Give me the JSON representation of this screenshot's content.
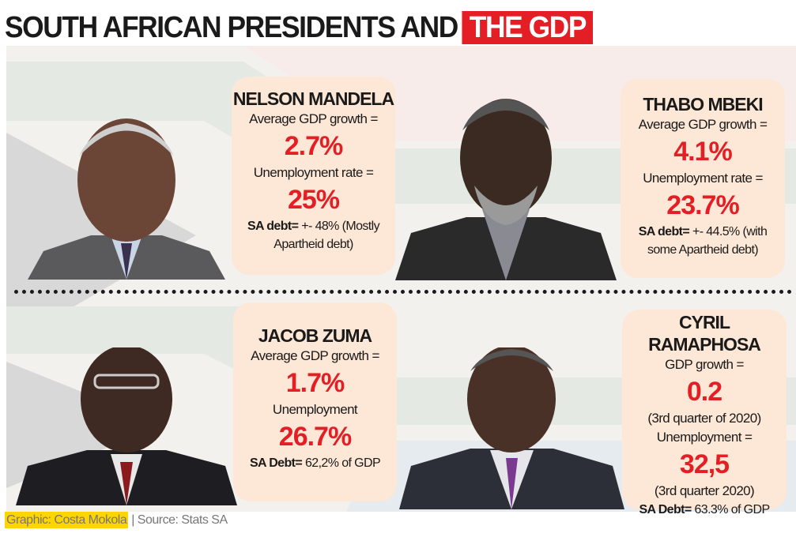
{
  "title": {
    "main": "SOUTH AFRICAN PRESIDENTS AND",
    "highlight": "THE GDP"
  },
  "colors": {
    "accent": "#e31e24",
    "card": "#fde7d6",
    "credit": "#ffd500"
  },
  "presidents": [
    {
      "name": "NELSON MANDELA",
      "gdp_label": "Average GDP growth =",
      "gdp": "2.7%",
      "unemp_label": "Unemployment rate =",
      "unemp": "25%",
      "debt_label": "SA debt=",
      "debt_text": "+- 48% (Mostly Apartheid debt)"
    },
    {
      "name": "THABO MBEKI",
      "gdp_label": "Average GDP growth =",
      "gdp": "4.1%",
      "unemp_label": "Unemployment rate =",
      "unemp": "23.7%",
      "debt_label": "SA debt=",
      "debt_text": "+- 44.5% (with some Apartheid debt)"
    },
    {
      "name": "JACOB ZUMA",
      "gdp_label": "Average GDP growth =",
      "gdp": "1.7%",
      "unemp_label": "Unemployment",
      "unemp": "26.7%",
      "debt_label": "SA Debt=",
      "debt_text": "62,2% of GDP"
    },
    {
      "name": "CYRIL RAMAPHOSA",
      "gdp_label": "GDP growth =",
      "gdp": "0.2",
      "gdp_note": "(3rd quarter of 2020)",
      "unemp_label": "Unemployment =",
      "unemp": "32,5",
      "unemp_note": "(3rd quarter 2020)",
      "debt_label": "SA Debt=",
      "debt_text": "63.3% of GDP"
    }
  ],
  "footer": {
    "credit": "Graphic: Costa Mokola",
    "source": "| Source: Stats SA"
  }
}
